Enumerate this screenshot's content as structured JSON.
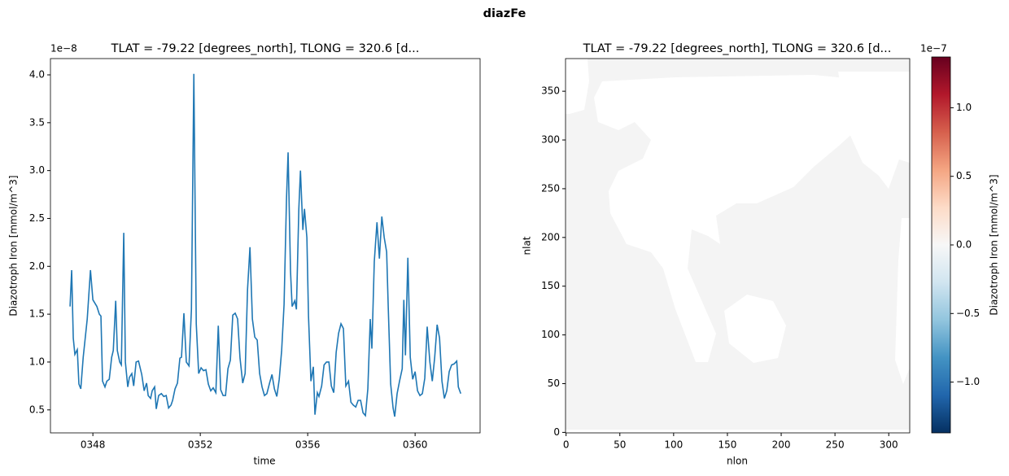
{
  "title": "diazFe",
  "chart_data": [
    {
      "type": "line",
      "title": "TLAT = -79.22 [degrees_north], TLONG = 320.6 [d...",
      "offset_text": "1e−8",
      "xlabel": "time",
      "ylabel": "Diazotroph Iron [mmol/m^3]",
      "color": "#1f77b4",
      "xlim": [
        346.42,
        362.42
      ],
      "xticks": [
        {
          "value": 348,
          "label": "0348"
        },
        {
          "value": 352,
          "label": "0352"
        },
        {
          "value": 356,
          "label": "0356"
        },
        {
          "value": 360,
          "label": "0360"
        }
      ],
      "ylim": [
        0.26,
        4.17
      ],
      "yticks": [
        0.5,
        {
          "value": 1.0,
          "label": "1.0"
        },
        1.5,
        {
          "value": 2.0,
          "label": "2.0"
        },
        2.5,
        {
          "value": 3.0,
          "label": "3.0"
        },
        3.5,
        {
          "value": 4.0,
          "label": "4.0"
        }
      ],
      "x": [
        347.15,
        347.21,
        347.27,
        347.33,
        347.42,
        347.48,
        347.55,
        347.64,
        347.79,
        347.91,
        348.0,
        348.15,
        348.24,
        348.3,
        348.36,
        348.45,
        348.52,
        348.61,
        348.7,
        348.76,
        348.85,
        348.91,
        349.0,
        349.06,
        349.15,
        349.21,
        349.3,
        349.36,
        349.45,
        349.52,
        349.61,
        349.7,
        349.82,
        349.91,
        350.0,
        350.06,
        350.15,
        350.21,
        350.3,
        350.36,
        350.45,
        350.55,
        350.64,
        350.73,
        350.82,
        350.91,
        350.97,
        351.06,
        351.15,
        351.24,
        351.3,
        351.39,
        351.48,
        351.58,
        351.67,
        351.76,
        351.85,
        351.94,
        352.03,
        352.12,
        352.21,
        352.3,
        352.39,
        352.48,
        352.58,
        352.67,
        352.76,
        352.85,
        352.94,
        353.03,
        353.12,
        353.21,
        353.3,
        353.39,
        353.48,
        353.58,
        353.67,
        353.76,
        353.85,
        353.94,
        354.03,
        354.12,
        354.21,
        354.3,
        354.39,
        354.48,
        354.58,
        354.67,
        354.76,
        354.85,
        354.94,
        355.03,
        355.12,
        355.21,
        355.27,
        355.36,
        355.42,
        355.52,
        355.58,
        355.67,
        355.73,
        355.82,
        355.88,
        355.97,
        356.03,
        356.12,
        356.21,
        356.27,
        356.36,
        356.42,
        356.52,
        356.61,
        356.7,
        356.79,
        356.88,
        356.97,
        357.06,
        357.15,
        357.24,
        357.33,
        357.42,
        357.52,
        357.61,
        357.7,
        357.79,
        357.88,
        357.97,
        358.06,
        358.15,
        358.24,
        358.33,
        358.39,
        358.48,
        358.58,
        358.67,
        358.76,
        358.85,
        358.94,
        359.0,
        359.09,
        359.18,
        359.24,
        359.33,
        359.42,
        359.52,
        359.58,
        359.64,
        359.73,
        359.82,
        359.91,
        360.0,
        360.09,
        360.18,
        360.27,
        360.36,
        360.45,
        360.55,
        360.64,
        360.73,
        360.82,
        360.91,
        361.0,
        361.09,
        361.18,
        361.27,
        361.36,
        361.45,
        361.55,
        361.61,
        361.7
      ],
      "values": [
        1.58,
        1.96,
        1.25,
        1.08,
        1.13,
        0.77,
        0.72,
        1.05,
        1.45,
        1.96,
        1.65,
        1.58,
        1.5,
        1.48,
        0.8,
        0.74,
        0.8,
        0.82,
        1.05,
        1.12,
        1.64,
        1.12,
        1.0,
        0.97,
        2.35,
        1.0,
        0.74,
        0.84,
        0.88,
        0.75,
        1.0,
        1.01,
        0.87,
        0.7,
        0.78,
        0.65,
        0.62,
        0.7,
        0.74,
        0.51,
        0.65,
        0.67,
        0.64,
        0.65,
        0.52,
        0.55,
        0.6,
        0.72,
        0.78,
        1.04,
        1.05,
        1.51,
        1.0,
        0.96,
        1.55,
        4.01,
        1.4,
        0.88,
        0.94,
        0.91,
        0.92,
        0.77,
        0.7,
        0.73,
        0.68,
        1.38,
        0.71,
        0.65,
        0.65,
        0.93,
        1.02,
        1.49,
        1.51,
        1.45,
        1.04,
        0.78,
        0.88,
        1.76,
        2.2,
        1.45,
        1.26,
        1.23,
        0.88,
        0.74,
        0.65,
        0.67,
        0.78,
        0.87,
        0.72,
        0.64,
        0.82,
        1.12,
        1.6,
        2.7,
        3.19,
        1.95,
        1.58,
        1.64,
        1.55,
        2.6,
        3.0,
        2.38,
        2.6,
        2.3,
        1.48,
        0.8,
        0.95,
        0.45,
        0.68,
        0.64,
        0.75,
        0.97,
        1.0,
        1.0,
        0.75,
        0.68,
        1.1,
        1.3,
        1.4,
        1.35,
        0.75,
        0.8,
        0.58,
        0.55,
        0.53,
        0.6,
        0.6,
        0.47,
        0.44,
        0.72,
        1.45,
        1.14,
        2.05,
        2.46,
        2.08,
        2.52,
        2.3,
        2.15,
        1.57,
        0.77,
        0.52,
        0.43,
        0.67,
        0.8,
        0.93,
        1.65,
        1.07,
        2.09,
        1.05,
        0.82,
        0.9,
        0.7,
        0.65,
        0.67,
        0.83,
        1.37,
        1.0,
        0.8,
        1.05,
        1.39,
        1.25,
        0.8,
        0.62,
        0.7,
        0.9,
        0.97,
        0.98,
        1.01,
        0.74,
        0.67
      ]
    },
    {
      "type": "heatmap",
      "title": "TLAT = -79.22 [degrees_north], TLONG = 320.6 [d...",
      "xlabel": "nlon",
      "ylabel": "nlat",
      "xlim": [
        -0.5,
        319.5
      ],
      "xticks": [
        0,
        50,
        100,
        150,
        200,
        250,
        300
      ],
      "ylim": [
        -0.5,
        383.5
      ],
      "yticks": [
        0,
        50,
        100,
        150,
        200,
        250,
        300,
        350
      ],
      "colorbar": {
        "label": "Diazotroph Iron [mmol/m^3]",
        "offset_text": "1e−7",
        "lim": [
          -1.37,
          1.37
        ],
        "ticks": [
          {
            "value": -1.0,
            "label": "−1.0"
          },
          {
            "value": -0.5,
            "label": "−0.5"
          },
          {
            "value": 0.0,
            "label": "0.0"
          },
          0.5,
          {
            "value": 1.0,
            "label": "1.0"
          }
        ],
        "colormap": [
          "#053061",
          "#2166ac",
          "#4393c3",
          "#92c5de",
          "#d1e5f0",
          "#f7f7f7",
          "#fddbc7",
          "#f4a582",
          "#d6604d",
          "#b2182b",
          "#67001f"
        ]
      }
    }
  ]
}
